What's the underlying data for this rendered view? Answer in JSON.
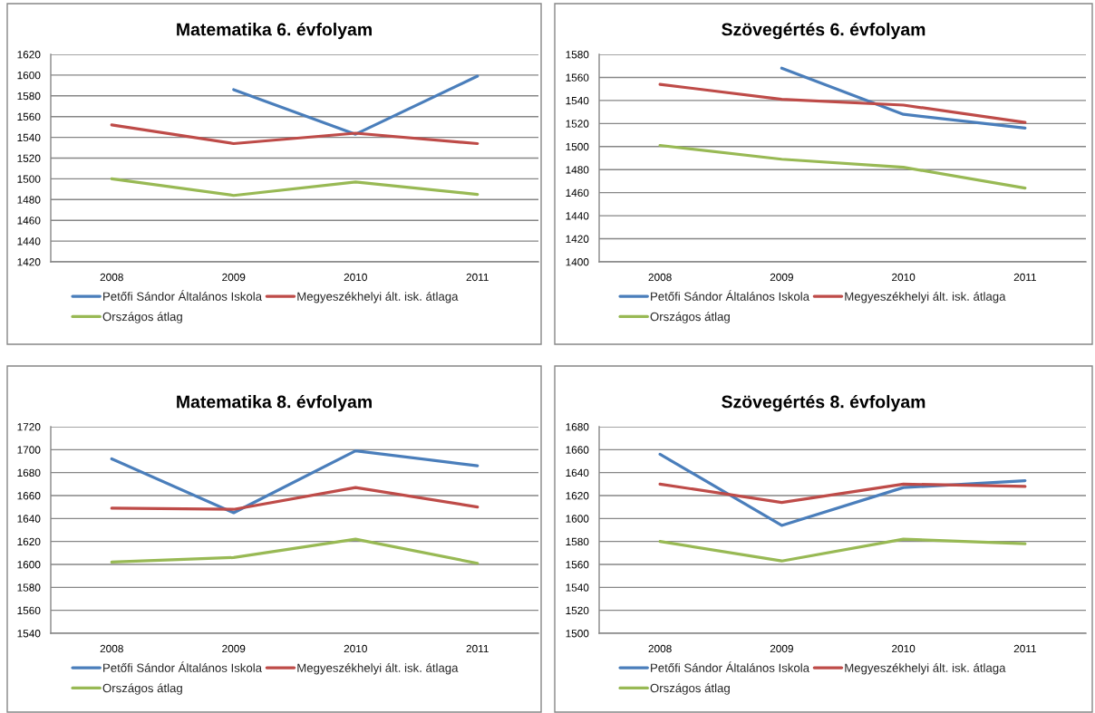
{
  "chart_data": [
    {
      "type": "line",
      "title": "Matematika 6. évfolyam",
      "categories": [
        "2008",
        "2009",
        "2010",
        "2011"
      ],
      "ylim": [
        1420,
        1620
      ],
      "yticks": [
        1420,
        1440,
        1460,
        1480,
        1500,
        1520,
        1540,
        1560,
        1580,
        1600,
        1620
      ],
      "grid": "y",
      "legend": "bottom",
      "line_style": "solid",
      "series": [
        {
          "name": "Petőfi Sándor Általános Iskola",
          "color": "#4a7ebb",
          "values": [
            null,
            1586,
            1543,
            1599
          ]
        },
        {
          "name": "Megyeszékhelyi ált. isk. átlaga",
          "color": "#be4b48",
          "values": [
            1552,
            1534,
            1544,
            1534
          ]
        },
        {
          "name": "Országos átlag",
          "color": "#98b954",
          "values": [
            1500,
            1484,
            1497,
            1485
          ]
        }
      ]
    },
    {
      "type": "line",
      "title": "Szövegértés 6. évfolyam",
      "categories": [
        "2008",
        "2009",
        "2010",
        "2011"
      ],
      "ylim": [
        1400,
        1580
      ],
      "yticks": [
        1400,
        1420,
        1440,
        1460,
        1480,
        1500,
        1520,
        1540,
        1560,
        1580
      ],
      "grid": "y",
      "legend": "bottom",
      "line_style": "solid",
      "series": [
        {
          "name": "Petőfi Sándor Általános Iskola",
          "color": "#4a7ebb",
          "values": [
            null,
            1568,
            1528,
            1516
          ]
        },
        {
          "name": "Megyeszékhelyi ált. isk. átlaga",
          "color": "#be4b48",
          "values": [
            1554,
            1541,
            1536,
            1521
          ]
        },
        {
          "name": "Országos átlag",
          "color": "#98b954",
          "values": [
            1501,
            1489,
            1482,
            1464
          ]
        }
      ]
    },
    {
      "type": "line",
      "title": "Matematika 8. évfolyam",
      "categories": [
        "2008",
        "2009",
        "2010",
        "2011"
      ],
      "ylim": [
        1540,
        1720
      ],
      "yticks": [
        1540,
        1560,
        1580,
        1600,
        1620,
        1640,
        1660,
        1680,
        1700,
        1720
      ],
      "grid": "y",
      "legend": "bottom",
      "line_style": "solid",
      "series": [
        {
          "name": "Petőfi Sándor Általános Iskola",
          "color": "#4a7ebb",
          "values": [
            1692,
            1645,
            1699,
            1686
          ]
        },
        {
          "name": "Megyeszékhelyi ált. isk. átlaga",
          "color": "#be4b48",
          "values": [
            1649,
            1648,
            1667,
            1650
          ]
        },
        {
          "name": "Országos átlag",
          "color": "#98b954",
          "values": [
            1602,
            1606,
            1622,
            1601
          ]
        }
      ]
    },
    {
      "type": "line",
      "title": "Szövegértés 8. évfolyam",
      "categories": [
        "2008",
        "2009",
        "2010",
        "2011"
      ],
      "ylim": [
        1500,
        1680
      ],
      "yticks": [
        1500,
        1520,
        1540,
        1560,
        1580,
        1600,
        1620,
        1640,
        1660,
        1680
      ],
      "grid": "y",
      "legend": "bottom",
      "line_style": "solid",
      "series": [
        {
          "name": "Petőfi Sándor Általános Iskola",
          "color": "#4a7ebb",
          "values": [
            1656,
            1594,
            1627,
            1633
          ]
        },
        {
          "name": "Megyeszékhelyi ált. isk. átlaga",
          "color": "#be4b48",
          "values": [
            1630,
            1614,
            1630,
            1628
          ]
        },
        {
          "name": "Országos átlag",
          "color": "#98b954",
          "values": [
            1580,
            1563,
            1582,
            1578
          ]
        }
      ]
    }
  ]
}
